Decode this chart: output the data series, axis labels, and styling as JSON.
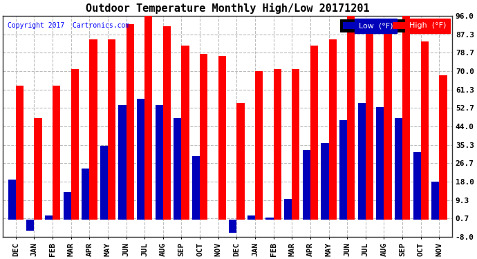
{
  "title": "Outdoor Temperature Monthly High/Low 20171201",
  "copyright": "Copyright 2017  Cartronics.com",
  "legend_low": "Low  (°F)",
  "legend_high": "High  (°F)",
  "months": [
    "DEC",
    "JAN",
    "FEB",
    "MAR",
    "APR",
    "MAY",
    "JUN",
    "JUL",
    "AUG",
    "SEP",
    "OCT",
    "NOV",
    "DEC",
    "JAN",
    "FEB",
    "MAR",
    "APR",
    "MAY",
    "JUN",
    "JUL",
    "AUG",
    "SEP",
    "OCT",
    "NOV"
  ],
  "high_values": [
    63,
    48,
    63,
    71,
    85,
    85,
    92,
    96,
    91,
    82,
    78,
    77,
    55,
    70,
    71,
    71,
    82,
    85,
    96,
    93,
    89,
    96,
    84,
    68
  ],
  "low_values": [
    19,
    -5,
    2,
    13,
    24,
    35,
    54,
    57,
    54,
    48,
    30,
    0,
    -6,
    2,
    1,
    10,
    33,
    36,
    47,
    55,
    53,
    48,
    32,
    18
  ],
  "ylim": [
    -8.0,
    96.0
  ],
  "yticks": [
    -8.0,
    0.7,
    9.3,
    18.0,
    26.7,
    35.3,
    44.0,
    52.7,
    61.3,
    70.0,
    78.7,
    87.3,
    96.0
  ],
  "bar_color_high": "#ff0000",
  "bar_color_low": "#0000bb",
  "bg_color": "#ffffff",
  "plot_bg_color": "#ffffff",
  "grid_color": "#bbbbbb",
  "title_fontsize": 11,
  "copyright_fontsize": 7,
  "tick_fontsize": 8,
  "bar_width": 0.42
}
